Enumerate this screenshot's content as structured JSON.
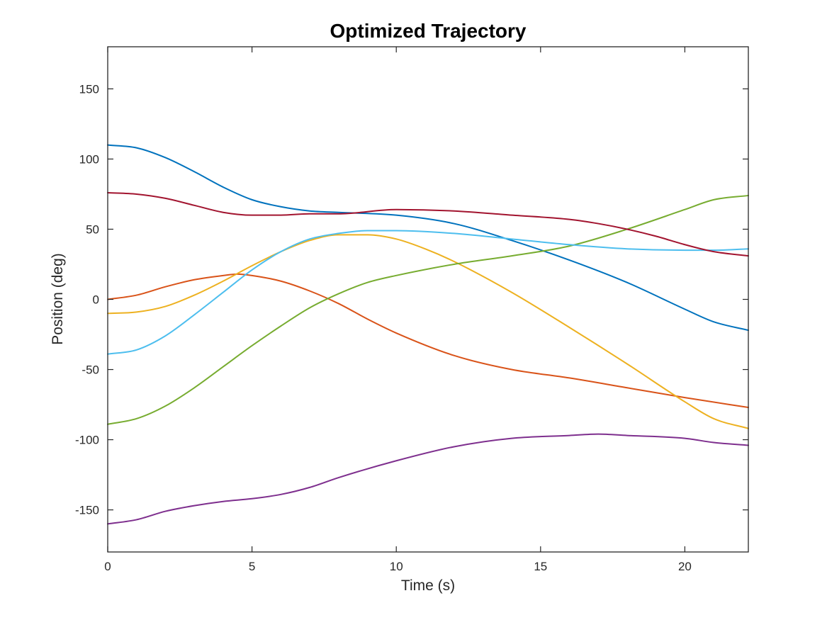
{
  "chart_data": {
    "type": "line",
    "title": "Optimized Trajectory",
    "xlabel": "Time (s)",
    "ylabel": "Position (deg)",
    "xlim": [
      0,
      22.2
    ],
    "ylim": [
      -180,
      180
    ],
    "xticks": [
      0,
      5,
      10,
      15,
      20
    ],
    "xtick_labels": [
      "0",
      "5",
      "10",
      "15",
      "20"
    ],
    "yticks": [
      -150,
      -100,
      -50,
      0,
      50,
      100,
      150
    ],
    "ytick_labels": [
      "-150",
      "-100",
      "-50",
      "0",
      "50",
      "100",
      "150"
    ],
    "grid": false,
    "legend": "none",
    "series": [
      {
        "color": "#0072BD",
        "x": [
          0,
          1,
          2,
          3,
          4,
          5,
          6,
          7,
          8,
          10,
          12,
          14,
          16,
          18,
          20,
          21,
          22.2
        ],
        "y": [
          110,
          108,
          101,
          91,
          80,
          71,
          66,
          63,
          62,
          60,
          54,
          42,
          28,
          12,
          -7,
          -16,
          -22
        ]
      },
      {
        "color": "#D95319",
        "x": [
          0,
          1,
          2,
          3,
          4,
          4.5,
          5,
          6,
          7,
          8,
          9,
          10,
          12,
          14,
          16,
          18,
          20,
          22.2
        ],
        "y": [
          0,
          3,
          9,
          14,
          17,
          18,
          17,
          13,
          6,
          -3,
          -14,
          -24,
          -40,
          -50,
          -56,
          -63,
          -70,
          -77
        ]
      },
      {
        "color": "#EDB120",
        "x": [
          0,
          1,
          2,
          3,
          4,
          5,
          6,
          7,
          8,
          9,
          10,
          11,
          12,
          14,
          16,
          18,
          20,
          21,
          22.2
        ],
        "y": [
          -10,
          -9,
          -5,
          3,
          13,
          24,
          34,
          42,
          46,
          46,
          43,
          36,
          27,
          5,
          -20,
          -46,
          -73,
          -85,
          -92
        ]
      },
      {
        "color": "#7E2F8E",
        "x": [
          0,
          1,
          2,
          3,
          4,
          5,
          6,
          7,
          8,
          10,
          12,
          14,
          16,
          17,
          18,
          20,
          21,
          22.2
        ],
        "y": [
          -160,
          -157,
          -151,
          -147,
          -144,
          -142,
          -139,
          -134,
          -127,
          -115,
          -105,
          -99,
          -97,
          -96,
          -97,
          -99,
          -102,
          -104
        ]
      },
      {
        "color": "#77AC30",
        "x": [
          0,
          1,
          2,
          3,
          4,
          5,
          6,
          7,
          8,
          9,
          10,
          12,
          14,
          16,
          18,
          20,
          21,
          22.2
        ],
        "y": [
          -89,
          -85,
          -76,
          -63,
          -48,
          -33,
          -19,
          -6,
          4,
          12,
          17,
          25,
          31,
          38,
          50,
          64,
          71,
          74
        ]
      },
      {
        "color": "#4DBEEE",
        "x": [
          0,
          1,
          2,
          3,
          4,
          5,
          6,
          7,
          8,
          9,
          10,
          12,
          14,
          16,
          18,
          20,
          21,
          22.2
        ],
        "y": [
          -39,
          -36,
          -26,
          -11,
          5,
          21,
          34,
          43,
          47,
          49,
          49,
          47,
          43,
          39,
          36,
          35,
          35,
          36
        ]
      },
      {
        "color": "#A2142F",
        "x": [
          0,
          1,
          2,
          3,
          4,
          5,
          6,
          7,
          8,
          10,
          12,
          14,
          16,
          17,
          18,
          19,
          20,
          21,
          22.2
        ],
        "y": [
          76,
          75,
          72,
          67,
          62,
          60,
          60,
          61,
          61,
          64,
          63,
          60,
          57,
          54,
          50,
          45,
          39,
          34,
          31
        ]
      }
    ]
  }
}
